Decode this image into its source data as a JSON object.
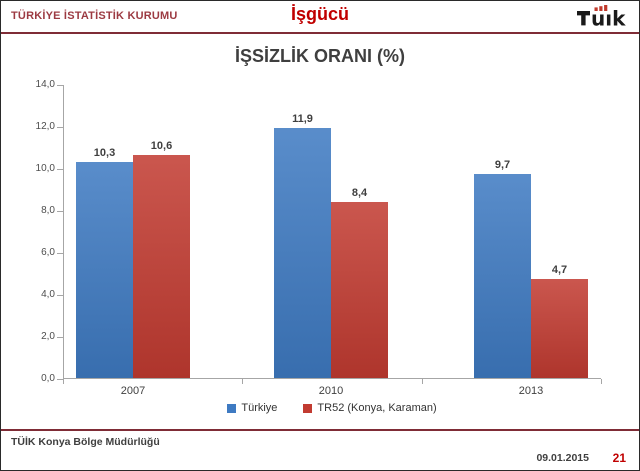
{
  "header": {
    "org_name": "TÜRKİYE İSTATİSTİK KURUMU",
    "section_title": "İşgücü",
    "logo_text": "TÜİK"
  },
  "chart_data": {
    "type": "bar",
    "title": "İŞSİZLİK ORANI (%)",
    "categories": [
      "2007",
      "2010",
      "2013"
    ],
    "series": [
      {
        "name": "Türkiye",
        "color": "#3e7ac2",
        "values": [
          10.3,
          11.9,
          9.7
        ],
        "labels": [
          "10,3",
          "11,9",
          "9,7"
        ]
      },
      {
        "name": "TR52 (Konya, Karaman)",
        "color": "#c23b31",
        "values": [
          10.6,
          8.4,
          4.7
        ],
        "labels": [
          "10,6",
          "8,4",
          "4,7"
        ]
      }
    ],
    "ylim": [
      0,
      14
    ],
    "ytick_step": 2,
    "ytick_labels": [
      "14,0",
      "12,0",
      "10,0",
      "8,0",
      "6,0",
      "4,0",
      "2,0",
      "0,0"
    ],
    "grid": false,
    "legend_position": "bottom"
  },
  "footer": {
    "department": "TÜİK Konya Bölge Müdürlüğü",
    "date": "09.01.2015",
    "page_number": "21"
  },
  "colors": {
    "accent_red": "#c00000",
    "maroon_rule": "#7f2c36",
    "bar_blue": "#3e7ac2",
    "bar_red": "#c23b31",
    "axis_gray": "#a6a6a6"
  }
}
